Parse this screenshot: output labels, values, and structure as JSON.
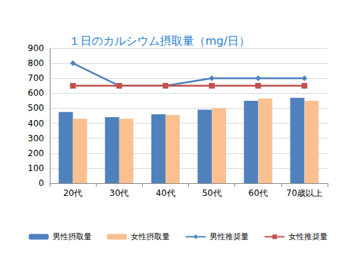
{
  "chart_data": {
    "type": "bar",
    "title": "１日のカルシウム摂取量（mg/日）",
    "categories": [
      "20代",
      "30代",
      "40代",
      "50代",
      "60代",
      "70歳以上"
    ],
    "series": [
      {
        "name": "男性摂取量",
        "type": "bar",
        "color": "#4f81bd",
        "values": [
          475,
          440,
          460,
          490,
          550,
          570
        ]
      },
      {
        "name": "女性摂取量",
        "type": "bar",
        "color": "#fac090",
        "values": [
          430,
          430,
          455,
          500,
          565,
          550
        ]
      },
      {
        "name": "男性推奨量",
        "type": "line",
        "color": "#4f81bd",
        "marker": "diamond",
        "values": [
          800,
          650,
          650,
          700,
          700,
          700
        ]
      },
      {
        "name": "女性推奨量",
        "type": "line",
        "color": "#c0504d",
        "marker": "square",
        "values": [
          650,
          650,
          650,
          650,
          650,
          650
        ]
      }
    ],
    "ylim": [
      0,
      900
    ],
    "yticks": [
      0,
      100,
      200,
      300,
      400,
      500,
      600,
      700,
      800,
      900
    ],
    "grid": true,
    "legend": "bottom"
  }
}
